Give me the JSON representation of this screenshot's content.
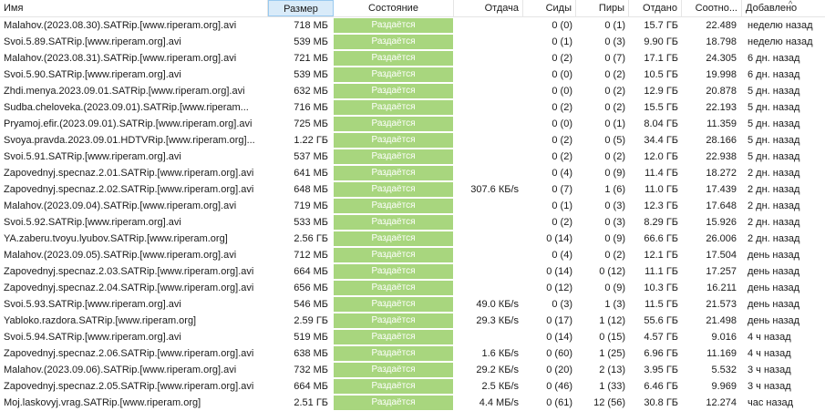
{
  "columns": {
    "name": "Имя",
    "size": "Размер",
    "state": "Состояние",
    "upload": "Отдача",
    "seeds": "Сиды",
    "peers": "Пиры",
    "given": "Отдано",
    "ratio": "Соотно...",
    "added": "Добавлено"
  },
  "sort_indicator": "^",
  "rows": [
    {
      "name": "Malahov.(2023.08.30).SATRip.[www.riperam.org].avi",
      "size": "718 МБ",
      "state": "Раздаётся",
      "upload": "",
      "seeds": "0 (0)",
      "peers": "0 (1)",
      "given": "15.7 ГБ",
      "ratio": "22.489",
      "added": "неделю назад"
    },
    {
      "name": "Svoi.5.89.SATRip.[www.riperam.org].avi",
      "size": "539 МБ",
      "state": "Раздаётся",
      "upload": "",
      "seeds": "0 (1)",
      "peers": "0 (3)",
      "given": "9.90 ГБ",
      "ratio": "18.798",
      "added": "неделю назад"
    },
    {
      "name": "Malahov.(2023.08.31).SATRip.[www.riperam.org].avi",
      "size": "721 МБ",
      "state": "Раздаётся",
      "upload": "",
      "seeds": "0 (2)",
      "peers": "0 (7)",
      "given": "17.1 ГБ",
      "ratio": "24.305",
      "added": "6 дн. назад"
    },
    {
      "name": "Svoi.5.90.SATRip.[www.riperam.org].avi",
      "size": "539 МБ",
      "state": "Раздаётся",
      "upload": "",
      "seeds": "0 (0)",
      "peers": "0 (2)",
      "given": "10.5 ГБ",
      "ratio": "19.998",
      "added": "6 дн. назад"
    },
    {
      "name": "Zhdi.menya.2023.09.01.SATRip.[www.riperam.org].avi",
      "size": "632 МБ",
      "state": "Раздаётся",
      "upload": "",
      "seeds": "0 (0)",
      "peers": "0 (2)",
      "given": "12.9 ГБ",
      "ratio": "20.878",
      "added": "5 дн. назад"
    },
    {
      "name": "Sudba.cheloveka.(2023.09.01).SATRip.[www.riperam...",
      "size": "716 МБ",
      "state": "Раздаётся",
      "upload": "",
      "seeds": "0 (2)",
      "peers": "0 (2)",
      "given": "15.5 ГБ",
      "ratio": "22.193",
      "added": "5 дн. назад"
    },
    {
      "name": "Pryamoj.efir.(2023.09.01).SATRip.[www.riperam.org].avi",
      "size": "725 МБ",
      "state": "Раздаётся",
      "upload": "",
      "seeds": "0 (0)",
      "peers": "0 (1)",
      "given": "8.04 ГБ",
      "ratio": "11.359",
      "added": "5 дн. назад"
    },
    {
      "name": "Svoya.pravda.2023.09.01.HDTVRip.[www.riperam.org]...",
      "size": "1.22 ГБ",
      "state": "Раздаётся",
      "upload": "",
      "seeds": "0 (2)",
      "peers": "0 (5)",
      "given": "34.4 ГБ",
      "ratio": "28.166",
      "added": "5 дн. назад"
    },
    {
      "name": "Svoi.5.91.SATRip.[www.riperam.org].avi",
      "size": "537 МБ",
      "state": "Раздаётся",
      "upload": "",
      "seeds": "0 (2)",
      "peers": "0 (2)",
      "given": "12.0 ГБ",
      "ratio": "22.938",
      "added": "5 дн. назад"
    },
    {
      "name": "Zapovednyj.specnaz.2.01.SATRip.[www.riperam.org].avi",
      "size": "641 МБ",
      "state": "Раздаётся",
      "upload": "",
      "seeds": "0 (4)",
      "peers": "0 (9)",
      "given": "11.4 ГБ",
      "ratio": "18.272",
      "added": "2 дн. назад"
    },
    {
      "name": "Zapovednyj.specnaz.2.02.SATRip.[www.riperam.org].avi",
      "size": "648 МБ",
      "state": "Раздаётся",
      "upload": "307.6 КБ/s",
      "seeds": "0 (7)",
      "peers": "1 (6)",
      "given": "11.0 ГБ",
      "ratio": "17.439",
      "added": "2 дн. назад"
    },
    {
      "name": "Malahov.(2023.09.04).SATRip.[www.riperam.org].avi",
      "size": "719 МБ",
      "state": "Раздаётся",
      "upload": "",
      "seeds": "0 (1)",
      "peers": "0 (3)",
      "given": "12.3 ГБ",
      "ratio": "17.648",
      "added": "2 дн. назад"
    },
    {
      "name": "Svoi.5.92.SATRip.[www.riperam.org].avi",
      "size": "533 МБ",
      "state": "Раздаётся",
      "upload": "",
      "seeds": "0 (2)",
      "peers": "0 (3)",
      "given": "8.29 ГБ",
      "ratio": "15.926",
      "added": "2 дн. назад"
    },
    {
      "name": "YA.zaberu.tvoyu.lyubov.SATRip.[www.riperam.org]",
      "size": "2.56 ГБ",
      "state": "Раздаётся",
      "upload": "",
      "seeds": "0 (14)",
      "peers": "0 (9)",
      "given": "66.6 ГБ",
      "ratio": "26.006",
      "added": "2 дн. назад"
    },
    {
      "name": "Malahov.(2023.09.05).SATRip.[www.riperam.org].avi",
      "size": "712 МБ",
      "state": "Раздаётся",
      "upload": "",
      "seeds": "0 (4)",
      "peers": "0 (2)",
      "given": "12.1 ГБ",
      "ratio": "17.504",
      "added": "день назад"
    },
    {
      "name": "Zapovednyj.specnaz.2.03.SATRip.[www.riperam.org].avi",
      "size": "664 МБ",
      "state": "Раздаётся",
      "upload": "",
      "seeds": "0 (14)",
      "peers": "0 (12)",
      "given": "11.1 ГБ",
      "ratio": "17.257",
      "added": "день назад"
    },
    {
      "name": "Zapovednyj.specnaz.2.04.SATRip.[www.riperam.org].avi",
      "size": "656 МБ",
      "state": "Раздаётся",
      "upload": "",
      "seeds": "0 (12)",
      "peers": "0 (9)",
      "given": "10.3 ГБ",
      "ratio": "16.211",
      "added": "день назад"
    },
    {
      "name": "Svoi.5.93.SATRip.[www.riperam.org].avi",
      "size": "546 МБ",
      "state": "Раздаётся",
      "upload": "49.0 КБ/s",
      "seeds": "0 (3)",
      "peers": "1 (3)",
      "given": "11.5 ГБ",
      "ratio": "21.573",
      "added": "день назад"
    },
    {
      "name": "Yabloko.razdora.SATRip.[www.riperam.org]",
      "size": "2.59 ГБ",
      "state": "Раздаётся",
      "upload": "29.3 КБ/s",
      "seeds": "0 (17)",
      "peers": "1 (12)",
      "given": "55.6 ГБ",
      "ratio": "21.498",
      "added": "день назад"
    },
    {
      "name": "Svoi.5.94.SATRip.[www.riperam.org].avi",
      "size": "519 МБ",
      "state": "Раздаётся",
      "upload": "",
      "seeds": "0 (14)",
      "peers": "0 (15)",
      "given": "4.57 ГБ",
      "ratio": "9.016",
      "added": "4 ч назад"
    },
    {
      "name": "Zapovednyj.specnaz.2.06.SATRip.[www.riperam.org].avi",
      "size": "638 МБ",
      "state": "Раздаётся",
      "upload": "1.6 КБ/s",
      "seeds": "0 (60)",
      "peers": "1 (25)",
      "given": "6.96 ГБ",
      "ratio": "11.169",
      "added": "4 ч назад"
    },
    {
      "name": "Malahov.(2023.09.06).SATRip.[www.riperam.org].avi",
      "size": "732 МБ",
      "state": "Раздаётся",
      "upload": "29.2 КБ/s",
      "seeds": "0 (20)",
      "peers": "2 (13)",
      "given": "3.95 ГБ",
      "ratio": "5.532",
      "added": "3 ч назад"
    },
    {
      "name": "Zapovednyj.specnaz.2.05.SATRip.[www.riperam.org].avi",
      "size": "664 МБ",
      "state": "Раздаётся",
      "upload": "2.5 КБ/s",
      "seeds": "0 (46)",
      "peers": "1 (33)",
      "given": "6.46 ГБ",
      "ratio": "9.969",
      "added": "3 ч назад"
    },
    {
      "name": "Moj.laskovyj.vrag.SATRip.[www.riperam.org]",
      "size": "2.51 ГБ",
      "state": "Раздаётся",
      "upload": "4.4 МБ/s",
      "seeds": "0 (61)",
      "peers": "12 (56)",
      "given": "30.8 ГБ",
      "ratio": "12.274",
      "added": "час назад"
    }
  ]
}
